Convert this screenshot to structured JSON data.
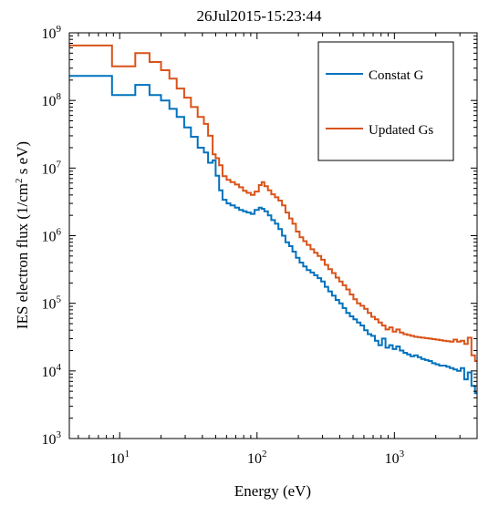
{
  "chart_data": {
    "type": "line",
    "title": "26Jul2015-15:23:44",
    "xlabel": "Energy (eV)",
    "ylabel": "IES electron flux (1/cm",
    "ylabel_sup": "2",
    "ylabel_tail": " s eV)",
    "x_scale": "log",
    "y_scale": "log",
    "xlim": [
      4.3,
      4000
    ],
    "ylim": [
      1000,
      1000000000
    ],
    "x_ticks": [
      {
        "value": 10,
        "base": "10",
        "exp": "1"
      },
      {
        "value": 100,
        "base": "10",
        "exp": "2"
      },
      {
        "value": 1000,
        "base": "10",
        "exp": "3"
      }
    ],
    "y_ticks": [
      {
        "value": 1000,
        "base": "10",
        "exp": "3"
      },
      {
        "value": 10000,
        "base": "10",
        "exp": "4"
      },
      {
        "value": 100000,
        "base": "10",
        "exp": "5"
      },
      {
        "value": 1000000,
        "base": "10",
        "exp": "6"
      },
      {
        "value": 10000000,
        "base": "10",
        "exp": "7"
      },
      {
        "value": 100000000,
        "base": "10",
        "exp": "8"
      },
      {
        "value": 1000000000,
        "base": "10",
        "exp": "9"
      }
    ],
    "grid": false,
    "legend_position": "top-right",
    "series": [
      {
        "name": "Constat G",
        "color": "#0072BD",
        "x": [
          4.3,
          8.8,
          13,
          16.5,
          20,
          23,
          26,
          29.5,
          33,
          37,
          41,
          44,
          47.5,
          50,
          53,
          56,
          60,
          64,
          69,
          74,
          79,
          84,
          90,
          96,
          103,
          108,
          113,
          120,
          127,
          135,
          143,
          152,
          161,
          171,
          181,
          192,
          204,
          217,
          230,
          245,
          260,
          276,
          293,
          311,
          330,
          351,
          373,
          396,
          420,
          446,
          474,
          503,
          534,
          567,
          602,
          639,
          679,
          721,
          765,
          812,
          862,
          916,
          972,
          1032,
          1096,
          1164,
          1236,
          1312,
          1393,
          1479,
          1570,
          1667,
          1770,
          1880,
          1996,
          2119,
          2250,
          2389,
          2537,
          2694,
          2860,
          3037,
          3225,
          3424,
          3636,
          3860
        ],
        "y": [
          230000000,
          120000000,
          170000000,
          120000000,
          100000000,
          75000000,
          57000000,
          40000000,
          29000000,
          20000000,
          17000000,
          12000000,
          13000000,
          7700000,
          4700000,
          3400000,
          3000000,
          2800000,
          2600000,
          2400000,
          2300000,
          2200000,
          2100000,
          2400000,
          2600000,
          2500000,
          2300000,
          2000000,
          1700000,
          1500000,
          1250000,
          1000000,
          800000,
          700000,
          580000,
          470000,
          400000,
          350000,
          310000,
          285000,
          260000,
          235000,
          210000,
          175000,
          150000,
          130000,
          112000,
          100000,
          85000,
          72000,
          64000,
          58000,
          52000,
          47000,
          40000,
          35000,
          33000,
          28000,
          24000,
          30000,
          22000,
          24000,
          21000,
          23000,
          20000,
          18500,
          17500,
          16500,
          17000,
          16000,
          15000,
          14500,
          14000,
          13000,
          12500,
          12000,
          12000,
          11500,
          11000,
          10500,
          10000,
          11000,
          7500,
          9500,
          6000,
          4700
        ]
      },
      {
        "name": "Updated Gs",
        "color": "#D95319",
        "x": [
          4.3,
          8.8,
          13,
          16.5,
          20,
          23,
          26,
          29.5,
          33,
          37,
          41,
          44,
          47.5,
          50,
          53,
          56,
          60,
          64,
          69,
          74,
          79,
          84,
          90,
          96,
          103,
          108,
          113,
          120,
          127,
          135,
          143,
          152,
          161,
          171,
          181,
          192,
          204,
          217,
          230,
          245,
          260,
          276,
          293,
          311,
          330,
          351,
          373,
          396,
          420,
          446,
          474,
          503,
          534,
          567,
          602,
          639,
          679,
          721,
          765,
          812,
          862,
          916,
          972,
          1032,
          1096,
          1164,
          1236,
          1312,
          1393,
          1479,
          1570,
          1667,
          1770,
          1880,
          1996,
          2119,
          2250,
          2389,
          2537,
          2694,
          2860,
          3037,
          3225,
          3424,
          3636,
          3860
        ],
        "y": [
          650000000,
          320000000,
          500000000,
          370000000,
          280000000,
          210000000,
          150000000,
          110000000,
          80000000,
          57000000,
          45000000,
          30000000,
          16000000,
          14000000,
          11000000,
          7600000,
          6700000,
          6200000,
          5700000,
          5200000,
          4600000,
          4300000,
          4000000,
          4500000,
          5600000,
          6200000,
          5400000,
          4700000,
          4100000,
          3700000,
          3300000,
          2800000,
          2200000,
          1800000,
          1500000,
          1150000,
          950000,
          830000,
          730000,
          630000,
          560000,
          500000,
          440000,
          370000,
          320000,
          280000,
          240000,
          210000,
          185000,
          160000,
          135000,
          115000,
          100000,
          92000,
          83000,
          72000,
          63000,
          58000,
          52000,
          47000,
          41000,
          44000,
          38000,
          41000,
          37000,
          35000,
          34000,
          33000,
          32000,
          31500,
          31000,
          30500,
          30000,
          29500,
          29000,
          28500,
          28000,
          27500,
          27000,
          29000,
          27000,
          28000,
          25000,
          31000,
          17000,
          14000
        ]
      }
    ]
  }
}
